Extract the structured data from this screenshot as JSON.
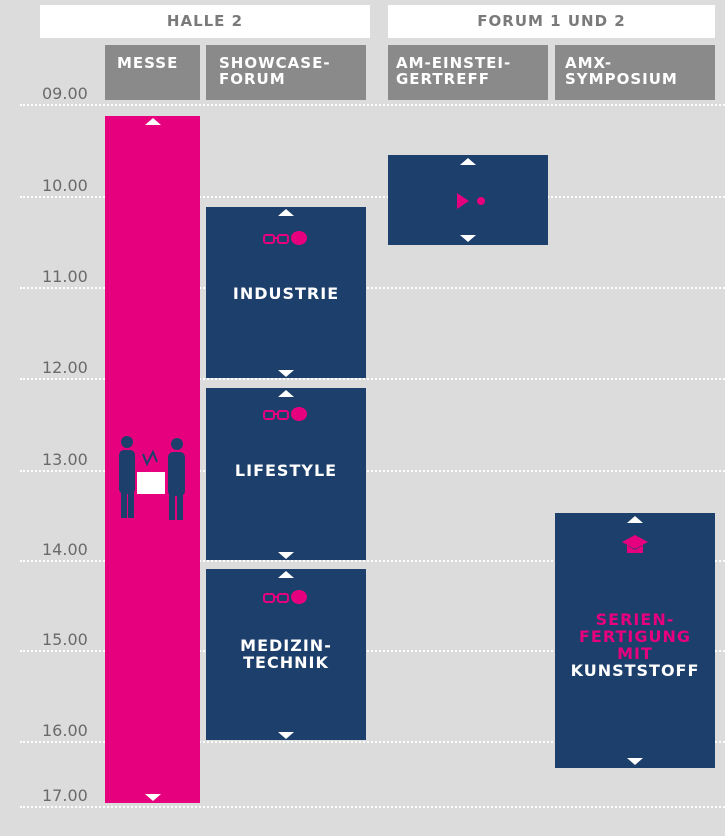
{
  "halls": [
    {
      "title": "HALLE 2",
      "columns": [
        "MESSE",
        "SHOWCASE-\nFORUM"
      ]
    },
    {
      "title": "FORUM 1 UND 2",
      "columns": [
        "AM-EINSTEI-\nGERTREFF",
        "AMX-\nSYMPOSIUM"
      ]
    }
  ],
  "times": [
    "09.00",
    "10.00",
    "11.00",
    "12.00",
    "13.00",
    "14.00",
    "15.00",
    "16.00",
    "17.00"
  ],
  "sessions": {
    "industrie": "INDUSTRIE",
    "lifestyle": "LIFESTYLE",
    "medizintechnik": "MEDIZIN-\nTECHNIK",
    "amx_highlight": "SERIEN-\nFERTIGUNG\nMIT",
    "amx": "KUNSTSTOFF"
  }
}
